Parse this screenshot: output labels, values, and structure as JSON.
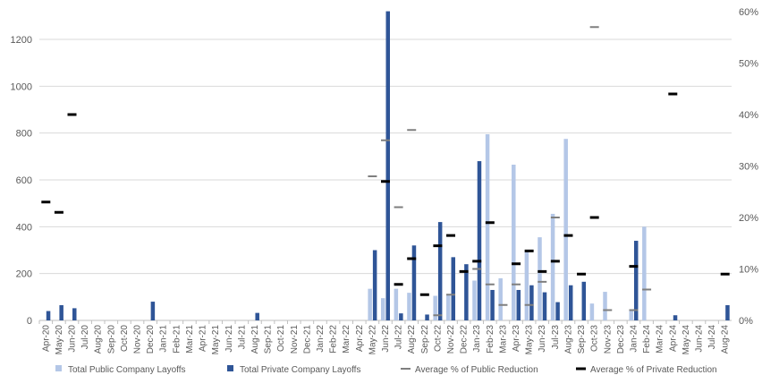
{
  "chart_data": {
    "type": "bar",
    "title": "",
    "xlabel": "",
    "ylabel": "",
    "ylim": [
      0,
      1300
    ],
    "y2lim": [
      0,
      0.6
    ],
    "yticks": [
      0,
      200,
      400,
      600,
      800,
      1000,
      1200
    ],
    "yticks_labels": [
      "0",
      "200",
      "400",
      "600",
      "800",
      "1000",
      "1200"
    ],
    "y2ticks": [
      0,
      0.1,
      0.2,
      0.3,
      0.4,
      0.5,
      0.6
    ],
    "y2ticks_labels": [
      "0%",
      "10%",
      "20%",
      "30%",
      "40%",
      "50%",
      "60%"
    ],
    "grid": true,
    "legend_position": "bottom",
    "categories": [
      "Apr-20",
      "May-20",
      "Jun-20",
      "Jul-20",
      "Aug-20",
      "Sep-20",
      "Oct-20",
      "Nov-20",
      "Dec-20",
      "Jan-21",
      "Feb-21",
      "Mar-21",
      "Apr-21",
      "May-21",
      "Jun-21",
      "Jul-21",
      "Aug-21",
      "Sep-21",
      "Oct-21",
      "Nov-21",
      "Dec-21",
      "Jan-22",
      "Feb-22",
      "Mar-22",
      "Apr-22",
      "May-22",
      "Jun-22",
      "Jul-22",
      "Aug-22",
      "Sep-22",
      "Oct-22",
      "Nov-22",
      "Dec-22",
      "Jan-23",
      "Feb-23",
      "Mar-23",
      "Apr-23",
      "May-23",
      "Jun-23",
      "Jul-23",
      "Aug-23",
      "Sep-23",
      "Oct-23",
      "Nov-23",
      "Dec-23",
      "Jan-24",
      "Feb-24",
      "Mar-24",
      "Apr-24",
      "May-24",
      "Jun-24",
      "Jul-24",
      "Aug-24"
    ],
    "series": [
      {
        "name": "Total Public Company Layoffs",
        "kind": "bar",
        "axis": "left",
        "color": "#b4c7e7",
        "values": [
          null,
          null,
          null,
          null,
          null,
          null,
          null,
          null,
          null,
          null,
          null,
          null,
          null,
          null,
          null,
          null,
          null,
          null,
          null,
          null,
          null,
          null,
          null,
          null,
          null,
          135,
          95,
          135,
          118,
          null,
          105,
          110,
          null,
          170,
          795,
          180,
          665,
          295,
          355,
          455,
          775,
          null,
          72,
          122,
          null,
          40,
          400,
          null,
          null,
          null,
          null,
          null,
          null
        ]
      },
      {
        "name": "Total Private Company Layoffs",
        "kind": "bar",
        "axis": "left",
        "color": "#2f5597",
        "values": [
          40,
          65,
          52,
          null,
          null,
          null,
          null,
          null,
          80,
          null,
          null,
          null,
          null,
          null,
          null,
          null,
          32,
          null,
          null,
          null,
          null,
          null,
          null,
          null,
          null,
          300,
          1320,
          30,
          320,
          25,
          420,
          270,
          240,
          680,
          130,
          null,
          130,
          150,
          120,
          78,
          150,
          165,
          null,
          null,
          null,
          340,
          null,
          null,
          22,
          null,
          null,
          null,
          65
        ]
      },
      {
        "name": "Average % of Public Reduction",
        "kind": "marker",
        "axis": "right",
        "color": "#7f7f7f",
        "values": [
          null,
          null,
          null,
          null,
          null,
          null,
          null,
          null,
          null,
          null,
          null,
          null,
          null,
          null,
          null,
          null,
          null,
          null,
          null,
          null,
          null,
          null,
          null,
          null,
          null,
          0.28,
          0.35,
          0.22,
          0.37,
          null,
          0.01,
          0.05,
          null,
          0.1,
          0.07,
          0.03,
          0.07,
          0.03,
          0.075,
          0.2,
          null,
          null,
          0.57,
          0.02,
          null,
          0.02,
          0.06,
          null,
          null,
          null,
          null,
          null,
          null
        ]
      },
      {
        "name": "Average % of Private Reduction",
        "kind": "marker",
        "axis": "right",
        "color": "#000000",
        "values": [
          0.23,
          0.21,
          0.4,
          null,
          null,
          null,
          null,
          null,
          null,
          null,
          null,
          null,
          null,
          null,
          null,
          null,
          null,
          null,
          null,
          null,
          null,
          null,
          null,
          null,
          null,
          null,
          0.27,
          0.07,
          0.12,
          0.05,
          0.145,
          0.165,
          0.095,
          0.115,
          0.19,
          null,
          0.11,
          0.135,
          0.095,
          0.115,
          0.165,
          0.09,
          0.2,
          null,
          null,
          0.105,
          null,
          null,
          0.44,
          null,
          null,
          null,
          0.09
        ]
      }
    ]
  }
}
